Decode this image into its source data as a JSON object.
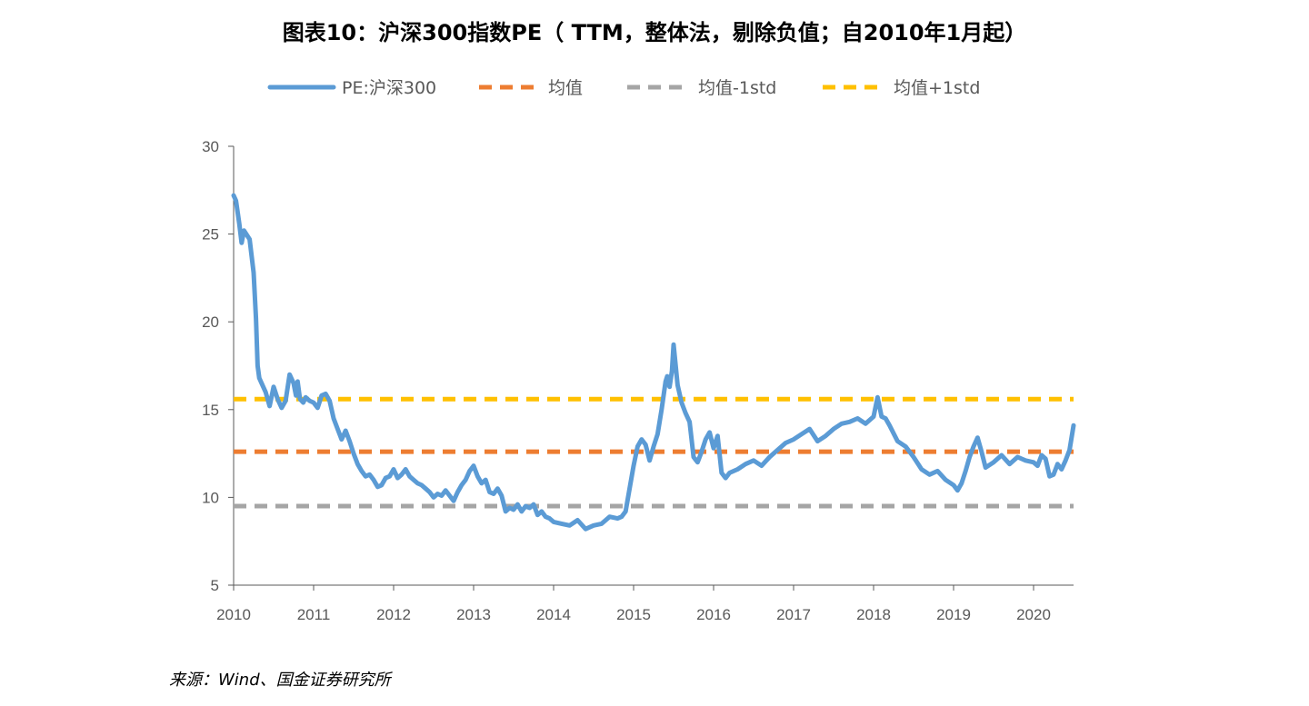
{
  "title": "图表10：沪深300指数PE（ TTM，整体法，剔除负值；自2010年1月起）",
  "source": "来源：Wind、国金证券研究所",
  "colors": {
    "pe": "#5B9BD5",
    "mean": "#ED7D31",
    "minus": "#A5A5A5",
    "plus": "#FFC000",
    "axis": "#595959"
  },
  "chart_data": {
    "type": "line",
    "title": "图表10：沪深300指数PE（ TTM，整体法，剔除负值；自2010年1月起）",
    "xlabel": "",
    "ylabel": "",
    "xlim": [
      2010.0,
      2020.5
    ],
    "ylim": [
      5,
      30
    ],
    "y_ticks": [
      5,
      10,
      15,
      20,
      25,
      30
    ],
    "x_tick_labels": [
      "2010",
      "2011",
      "2012",
      "2013",
      "2014",
      "2015",
      "2016",
      "2017",
      "2018",
      "2019",
      "2020"
    ],
    "legend_position": "top",
    "grid": false,
    "series": [
      {
        "name": "PE:沪深300",
        "style": "solid",
        "x": [
          2010.0,
          2010.03,
          2010.07,
          2010.1,
          2010.13,
          2010.2,
          2010.25,
          2010.28,
          2010.3,
          2010.32,
          2010.35,
          2010.4,
          2010.45,
          2010.5,
          2010.55,
          2010.6,
          2010.65,
          2010.7,
          2010.75,
          2010.78,
          2010.8,
          2010.83,
          2010.87,
          2010.9,
          2010.95,
          2011.0,
          2011.05,
          2011.1,
          2011.15,
          2011.2,
          2011.25,
          2011.3,
          2011.35,
          2011.4,
          2011.45,
          2011.5,
          2011.55,
          2011.6,
          2011.65,
          2011.7,
          2011.75,
          2011.8,
          2011.85,
          2011.9,
          2011.95,
          2012.0,
          2012.05,
          2012.1,
          2012.15,
          2012.2,
          2012.25,
          2012.3,
          2012.35,
          2012.4,
          2012.45,
          2012.5,
          2012.55,
          2012.6,
          2012.65,
          2012.7,
          2012.75,
          2012.8,
          2012.85,
          2012.9,
          2012.95,
          2013.0,
          2013.05,
          2013.1,
          2013.15,
          2013.2,
          2013.25,
          2013.3,
          2013.35,
          2013.4,
          2013.45,
          2013.5,
          2013.55,
          2013.6,
          2013.65,
          2013.7,
          2013.75,
          2013.8,
          2013.85,
          2013.9,
          2013.95,
          2014.0,
          2014.1,
          2014.2,
          2014.3,
          2014.4,
          2014.5,
          2014.6,
          2014.7,
          2014.8,
          2014.85,
          2014.9,
          2014.95,
          2015.0,
          2015.05,
          2015.1,
          2015.15,
          2015.2,
          2015.25,
          2015.3,
          2015.35,
          2015.4,
          2015.42,
          2015.45,
          2015.48,
          2015.5,
          2015.55,
          2015.6,
          2015.65,
          2015.7,
          2015.75,
          2015.8,
          2015.85,
          2015.9,
          2015.95,
          2016.0,
          2016.05,
          2016.1,
          2016.15,
          2016.2,
          2016.3,
          2016.4,
          2016.5,
          2016.6,
          2016.7,
          2016.8,
          2016.9,
          2017.0,
          2017.1,
          2017.2,
          2017.3,
          2017.4,
          2017.5,
          2017.6,
          2017.7,
          2017.8,
          2017.9,
          2018.0,
          2018.05,
          2018.1,
          2018.15,
          2018.2,
          2018.3,
          2018.4,
          2018.5,
          2018.6,
          2018.7,
          2018.8,
          2018.9,
          2019.0,
          2019.05,
          2019.1,
          2019.15,
          2019.2,
          2019.25,
          2019.3,
          2019.35,
          2019.4,
          2019.5,
          2019.6,
          2019.7,
          2019.8,
          2019.9,
          2020.0,
          2020.05,
          2020.1,
          2020.15,
          2020.2,
          2020.25,
          2020.3,
          2020.35,
          2020.4,
          2020.45,
          2020.5
        ],
        "y": [
          27.2,
          26.9,
          25.6,
          24.5,
          25.2,
          24.7,
          22.8,
          20.2,
          17.5,
          16.8,
          16.5,
          16.0,
          15.2,
          16.3,
          15.6,
          15.1,
          15.5,
          17.0,
          16.5,
          15.8,
          16.6,
          15.6,
          15.4,
          15.7,
          15.5,
          15.4,
          15.1,
          15.8,
          15.9,
          15.5,
          14.5,
          13.9,
          13.3,
          13.8,
          13.2,
          12.5,
          11.9,
          11.5,
          11.2,
          11.3,
          11.0,
          10.6,
          10.7,
          11.1,
          11.2,
          11.6,
          11.1,
          11.3,
          11.6,
          11.2,
          11.0,
          10.8,
          10.7,
          10.5,
          10.3,
          10.0,
          10.2,
          10.1,
          10.4,
          10.1,
          9.8,
          10.3,
          10.7,
          11.0,
          11.5,
          11.8,
          11.2,
          10.8,
          11.0,
          10.3,
          10.2,
          10.5,
          10.1,
          9.2,
          9.4,
          9.3,
          9.6,
          9.2,
          9.5,
          9.4,
          9.6,
          9.0,
          9.2,
          8.9,
          8.8,
          8.6,
          8.5,
          8.4,
          8.7,
          8.2,
          8.4,
          8.5,
          8.9,
          8.8,
          8.9,
          9.2,
          10.5,
          11.8,
          12.9,
          13.3,
          13.0,
          12.1,
          12.9,
          13.6,
          15.0,
          16.6,
          16.9,
          16.3,
          17.2,
          18.7,
          16.4,
          15.4,
          14.8,
          14.3,
          12.3,
          12.0,
          12.6,
          13.3,
          13.7,
          12.8,
          13.5,
          11.4,
          11.1,
          11.4,
          11.6,
          11.9,
          12.1,
          11.8,
          12.3,
          12.7,
          13.1,
          13.3,
          13.6,
          13.9,
          13.2,
          13.5,
          13.9,
          14.2,
          14.3,
          14.5,
          14.2,
          14.6,
          15.7,
          14.6,
          14.5,
          14.1,
          13.2,
          12.9,
          12.3,
          11.6,
          11.3,
          11.5,
          11.0,
          10.7,
          10.4,
          10.8,
          11.5,
          12.3,
          12.9,
          13.4,
          12.6,
          11.7,
          12.0,
          12.4,
          11.9,
          12.3,
          12.1,
          12.0,
          11.8,
          12.4,
          12.2,
          11.2,
          11.3,
          11.9,
          11.6,
          12.1,
          12.7,
          14.1
        ]
      },
      {
        "name": "均值",
        "style": "dashed",
        "value": 12.6
      },
      {
        "name": "均值-1std",
        "style": "dashed",
        "value": 9.5
      },
      {
        "name": "均值+1std",
        "style": "dashed",
        "value": 15.6
      }
    ]
  }
}
